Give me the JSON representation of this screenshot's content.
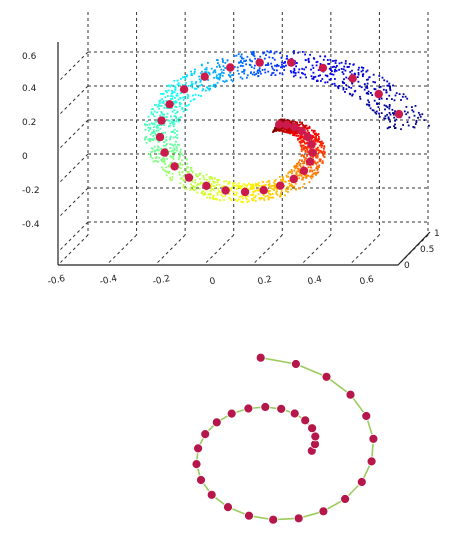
{
  "chart_data": [
    {
      "type": "scatter",
      "title": "",
      "projection": "3d",
      "grid": true,
      "z_ticks": [
        "0.6",
        "0.4",
        "0.2",
        "0",
        "-0.2",
        "-0.4"
      ],
      "x_ticks": [
        "-0.6",
        "-0.4",
        "-0.2",
        "0",
        "0.2",
        "0.4",
        "0.6"
      ],
      "y_ticks": [
        "0",
        "0.5",
        "1"
      ],
      "colormap": [
        "#00007f",
        "#0000ff",
        "#00ffff",
        "#7fff7f",
        "#ffff00",
        "#ff7f00",
        "#ff0000",
        "#7f0000"
      ],
      "landmark_color": "#cc1a4d",
      "x_range": [
        -0.6,
        0.6
      ],
      "y_range": [
        0,
        1
      ],
      "z_range": [
        -0.4,
        0.6
      ]
    },
    {
      "type": "line",
      "title": "",
      "line_color": "#9ccc5c",
      "marker_color": "#b5174a",
      "points": 30,
      "axes": false
    }
  ]
}
